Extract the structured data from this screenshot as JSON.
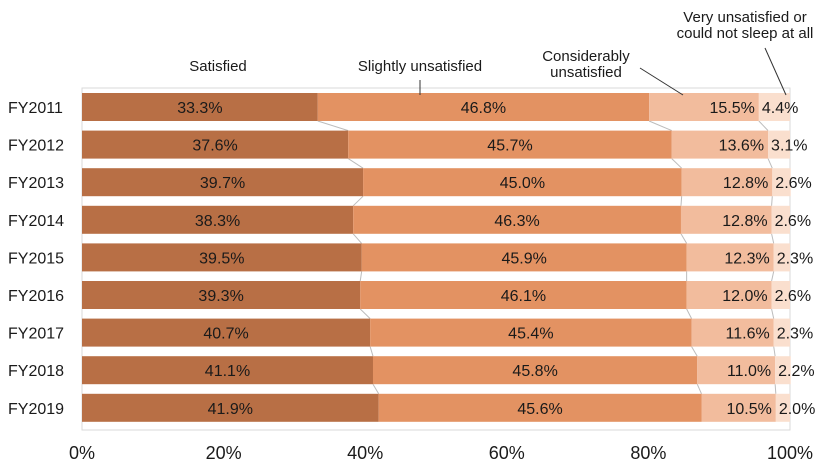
{
  "chart_data": {
    "type": "bar",
    "orientation": "horizontal",
    "stacked": true,
    "title": "",
    "xlabel": "",
    "ylabel": "",
    "xlim": [
      0,
      100
    ],
    "x_ticks": [
      "0%",
      "20%",
      "40%",
      "60%",
      "80%",
      "100%"
    ],
    "grid": false,
    "legend": "none",
    "categories": [
      "FY2011",
      "FY2012",
      "FY2013",
      "FY2014",
      "FY2015",
      "FY2016",
      "FY2017",
      "FY2018",
      "FY2019"
    ],
    "series": [
      {
        "name": "Satisfied",
        "color": "#b86f45",
        "values": [
          33.3,
          37.6,
          39.7,
          38.3,
          39.5,
          39.3,
          40.7,
          41.1,
          41.9
        ]
      },
      {
        "name": "Slightly unsatisfied",
        "color": "#e39262",
        "values": [
          46.8,
          45.7,
          45.0,
          46.3,
          45.9,
          46.1,
          45.4,
          45.8,
          45.6
        ]
      },
      {
        "name": "Considerably unsatisfied",
        "color": "#f2bc9d",
        "values": [
          15.5,
          13.6,
          12.8,
          12.8,
          12.3,
          12.0,
          11.6,
          11.0,
          10.5
        ]
      },
      {
        "name": "Very unsatisfied or could not sleep at all",
        "color": "#fadfce",
        "values": [
          4.4,
          3.1,
          2.6,
          2.6,
          2.3,
          2.6,
          2.3,
          2.2,
          2.0
        ]
      }
    ],
    "data_labels": [
      [
        "33.3%",
        "37.6%",
        "39.7%",
        "38.3%",
        "39.5%",
        "39.3%",
        "40.7%",
        "41.1%",
        "41.9%"
      ],
      [
        "46.8%",
        "45.7%",
        "45.0%",
        "46.3%",
        "45.9%",
        "46.1%",
        "45.4%",
        "45.8%",
        "45.6%"
      ],
      [
        "15.5%",
        "13.6%",
        "12.8%",
        "12.8%",
        "12.3%",
        "12.0%",
        "11.6%",
        "11.0%",
        "10.5%"
      ],
      [
        "4.4%",
        "3.1%",
        "2.6%",
        "2.6%",
        "2.3%",
        "2.6%",
        "2.3%",
        "2.2%",
        "2.0%"
      ]
    ],
    "annotations": [
      {
        "series": "Satisfied",
        "lines": [
          "Satisfied"
        ]
      },
      {
        "series": "Slightly unsatisfied",
        "lines": [
          "Slightly unsatisfied"
        ]
      },
      {
        "series": "Considerably unsatisfied",
        "lines": [
          "Considerably",
          "unsatisfied"
        ]
      },
      {
        "series": "Very unsatisfied or could not sleep at all",
        "lines": [
          "Very unsatisfied or",
          "could not sleep at all"
        ]
      }
    ]
  }
}
